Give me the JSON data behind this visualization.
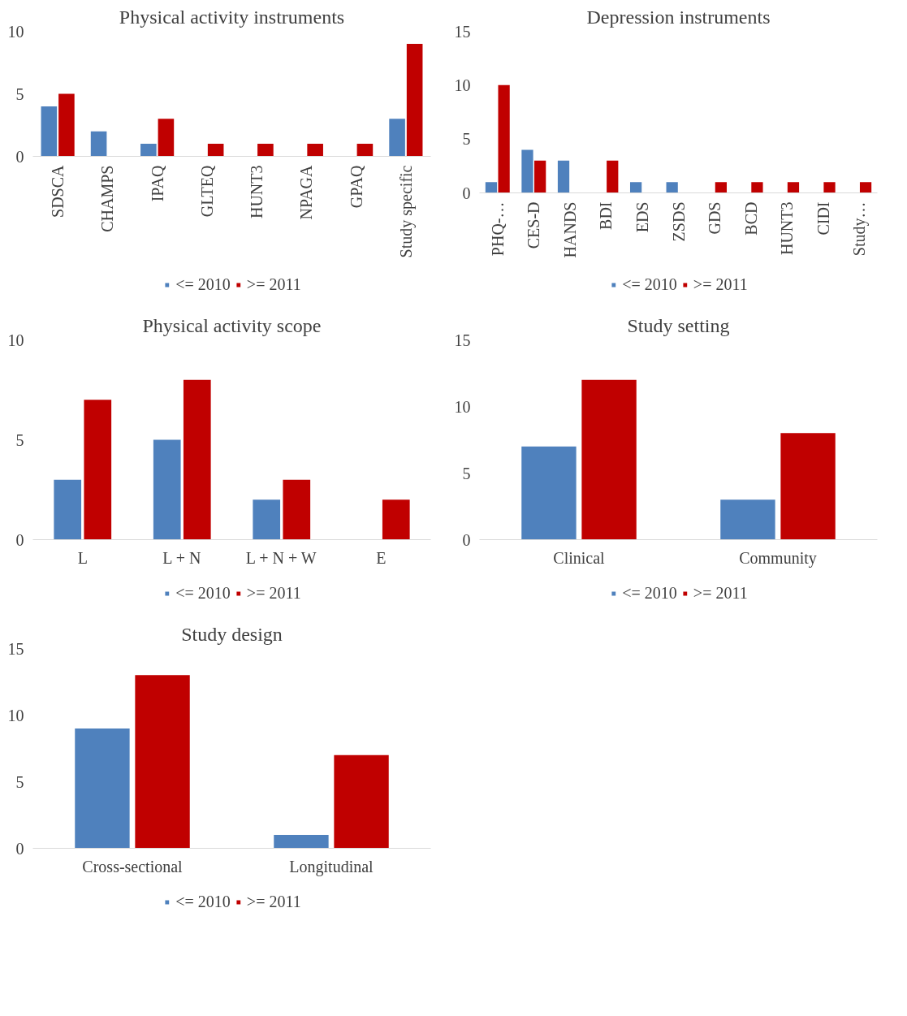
{
  "chart_data": [
    {
      "type": "bar",
      "title": "Physical activity instruments",
      "categories": [
        "SDSCA",
        "CHAMPS",
        "IPAQ",
        "GLTEQ",
        "HUNT3",
        "NPAGA",
        "GPAQ",
        "Study specific"
      ],
      "series": [
        {
          "name": "<= 2010",
          "color": "#4f81bd",
          "values": [
            4,
            2,
            1,
            0,
            0,
            0,
            0,
            3
          ]
        },
        {
          "name": ">= 2011",
          "color": "#c00000",
          "values": [
            5,
            0,
            3,
            1,
            1,
            1,
            1,
            9
          ]
        }
      ],
      "ylim": [
        0,
        10
      ],
      "yticks": [
        0,
        5,
        10
      ],
      "grid": false,
      "legend": "bottom"
    },
    {
      "type": "bar",
      "title": "Depression instruments",
      "categories": [
        "PHQ-…",
        "CES-D",
        "HANDS",
        "BDI",
        "EDS",
        "ZSDS",
        "GDS",
        "BCD",
        "HUNT3",
        "CIDI",
        "Study…"
      ],
      "series": [
        {
          "name": "<= 2010",
          "color": "#4f81bd",
          "values": [
            1,
            4,
            3,
            0,
            1,
            1,
            0,
            0,
            0,
            0,
            0
          ]
        },
        {
          "name": ">= 2011",
          "color": "#c00000",
          "values": [
            10,
            3,
            0,
            3,
            0,
            0,
            1,
            1,
            1,
            1,
            1
          ]
        }
      ],
      "ylim": [
        0,
        15
      ],
      "yticks": [
        0,
        5,
        10,
        15
      ],
      "grid": false,
      "legend": "bottom"
    },
    {
      "type": "bar",
      "title": "Physical activity scope",
      "categories": [
        "L",
        "L + N",
        "L + N + W",
        "E"
      ],
      "series": [
        {
          "name": "<= 2010",
          "color": "#4f81bd",
          "values": [
            3,
            5,
            2,
            0
          ]
        },
        {
          "name": ">= 2011",
          "color": "#c00000",
          "values": [
            7,
            8,
            3,
            2
          ]
        }
      ],
      "ylim": [
        0,
        10
      ],
      "yticks": [
        0,
        5,
        10
      ],
      "grid": false,
      "legend": "bottom"
    },
    {
      "type": "bar",
      "title": "Study setting",
      "categories": [
        "Clinical",
        "Community"
      ],
      "series": [
        {
          "name": "<= 2010",
          "color": "#4f81bd",
          "values": [
            7,
            3
          ]
        },
        {
          "name": ">= 2011",
          "color": "#c00000",
          "values": [
            12,
            8
          ]
        }
      ],
      "ylim": [
        0,
        15
      ],
      "yticks": [
        0,
        5,
        10,
        15
      ],
      "grid": false,
      "legend": "bottom"
    },
    {
      "type": "bar",
      "title": "Study design",
      "categories": [
        "Cross-sectional",
        "Longitudinal"
      ],
      "series": [
        {
          "name": "<= 2010",
          "color": "#4f81bd",
          "values": [
            9,
            1
          ]
        },
        {
          "name": ">= 2011",
          "color": "#c00000",
          "values": [
            13,
            7
          ]
        }
      ],
      "ylim": [
        0,
        15
      ],
      "yticks": [
        0,
        5,
        10,
        15
      ],
      "grid": false,
      "legend": "bottom"
    }
  ]
}
